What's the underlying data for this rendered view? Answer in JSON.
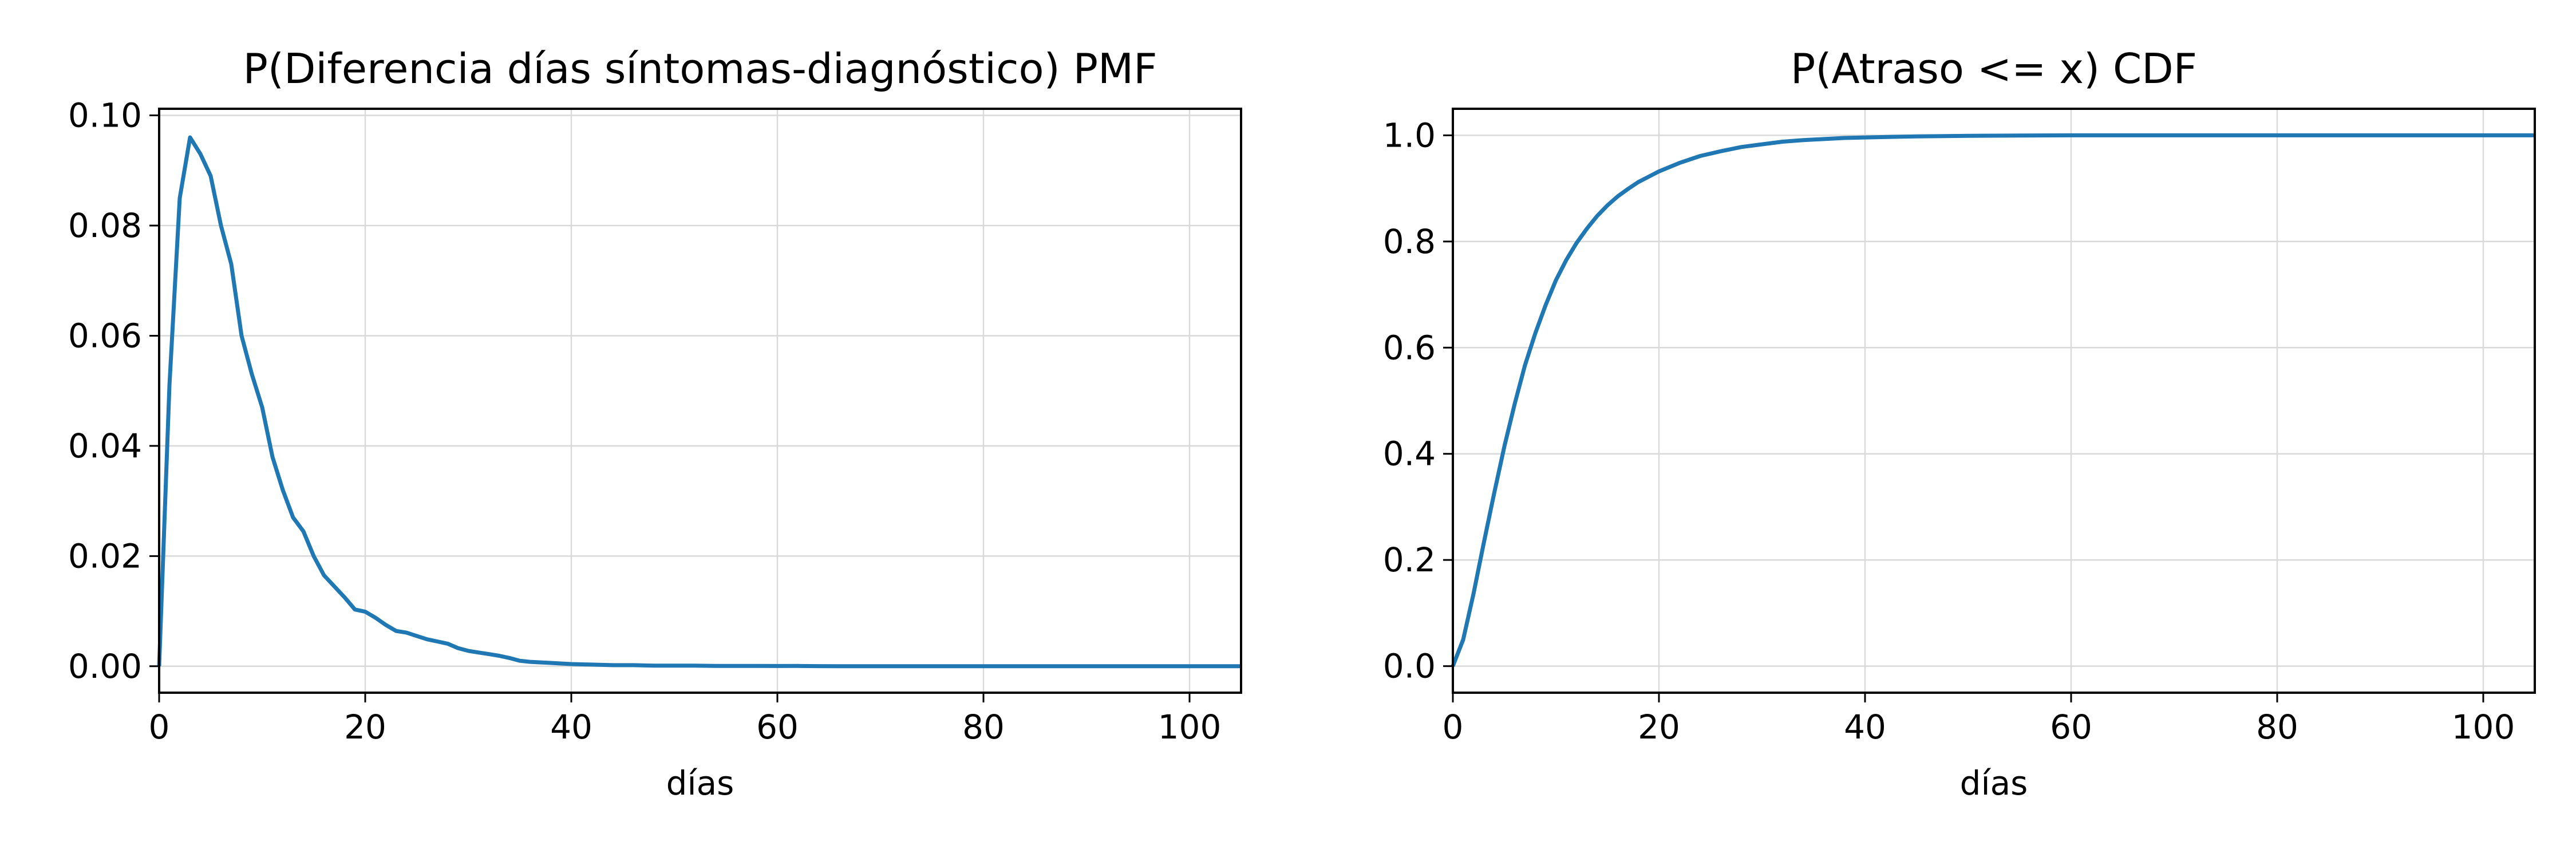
{
  "chart_data": [
    {
      "type": "line",
      "title": "P(Diferencia días síntomas-diagnóstico) PMF",
      "xlabel": "días",
      "ylabel": "",
      "xlim": [
        0,
        105
      ],
      "ylim": [
        -0.0048,
        0.1012
      ],
      "grid": true,
      "legend": "none",
      "xticks": [
        0,
        20,
        40,
        60,
        80,
        100
      ],
      "xtick_labels": [
        "0",
        "20",
        "40",
        "60",
        "80",
        "100"
      ],
      "yticks": [
        0.0,
        0.02,
        0.04,
        0.06,
        0.08,
        0.1
      ],
      "ytick_labels": [
        "0.00",
        "0.02",
        "0.04",
        "0.06",
        "0.08",
        "0.10"
      ],
      "series": [
        {
          "color": "#1f77b4",
          "x": [
            0,
            1,
            2,
            3,
            4,
            5,
            6,
            7,
            8,
            9,
            10,
            11,
            12,
            13,
            14,
            15,
            16,
            17,
            18,
            19,
            20,
            21,
            22,
            23,
            24,
            25,
            26,
            27,
            28,
            29,
            30,
            31,
            32,
            33,
            34,
            35,
            36,
            38,
            40,
            42,
            44,
            46,
            48,
            50,
            52,
            54,
            56,
            58,
            60,
            62,
            64,
            66,
            68,
            70,
            75,
            80,
            85,
            90,
            95,
            100,
            105
          ],
          "y": [
            0.0,
            0.051,
            0.085,
            0.096,
            0.093,
            0.089,
            0.08,
            0.073,
            0.06,
            0.053,
            0.047,
            0.038,
            0.032,
            0.027,
            0.0245,
            0.02,
            0.0165,
            0.0145,
            0.0125,
            0.0103,
            0.0099,
            0.0088,
            0.0075,
            0.0064,
            0.0061,
            0.0055,
            0.0049,
            0.0045,
            0.0041,
            0.0033,
            0.0028,
            0.0025,
            0.0022,
            0.0019,
            0.0015,
            0.001,
            0.0008,
            0.0006,
            0.0004,
            0.0003,
            0.0002,
            0.0002,
            0.0001,
            0.0001,
            0.0001,
            5e-05,
            5e-05,
            5e-05,
            4e-05,
            5e-05,
            2e-05,
            1e-05,
            1e-05,
            0.0,
            0.0,
            0.0,
            0.0,
            0.0,
            0.0,
            0.0,
            0.0
          ]
        }
      ]
    },
    {
      "type": "line",
      "title": "P(Atraso <= x) CDF",
      "xlabel": "días",
      "ylabel": "",
      "xlim": [
        0,
        105
      ],
      "ylim": [
        -0.05,
        1.05
      ],
      "grid": true,
      "legend": "none",
      "xticks": [
        0,
        20,
        40,
        60,
        80,
        100
      ],
      "xtick_labels": [
        "0",
        "20",
        "40",
        "60",
        "80",
        "100"
      ],
      "yticks": [
        0.0,
        0.2,
        0.4,
        0.6,
        0.8,
        1.0
      ],
      "ytick_labels": [
        "0.0",
        "0.2",
        "0.4",
        "0.6",
        "0.8",
        "1.0"
      ],
      "series": [
        {
          "color": "#1f77b4",
          "x": [
            0,
            1,
            2,
            3,
            4,
            5,
            6,
            7,
            8,
            9,
            10,
            11,
            12,
            13,
            14,
            15,
            16,
            17,
            18,
            19,
            20,
            22,
            24,
            26,
            28,
            30,
            32,
            34,
            36,
            38,
            40,
            45,
            50,
            55,
            60,
            70,
            80,
            90,
            100,
            105
          ],
          "y": [
            0.0,
            0.05,
            0.136,
            0.232,
            0.325,
            0.414,
            0.494,
            0.567,
            0.627,
            0.68,
            0.727,
            0.765,
            0.797,
            0.824,
            0.848,
            0.868,
            0.885,
            0.899,
            0.912,
            0.922,
            0.932,
            0.948,
            0.961,
            0.97,
            0.978,
            0.983,
            0.988,
            0.991,
            0.993,
            0.995,
            0.996,
            0.998,
            0.999,
            0.9995,
            1.0,
            1.0,
            1.0,
            1.0,
            1.0,
            1.0
          ]
        }
      ]
    }
  ]
}
